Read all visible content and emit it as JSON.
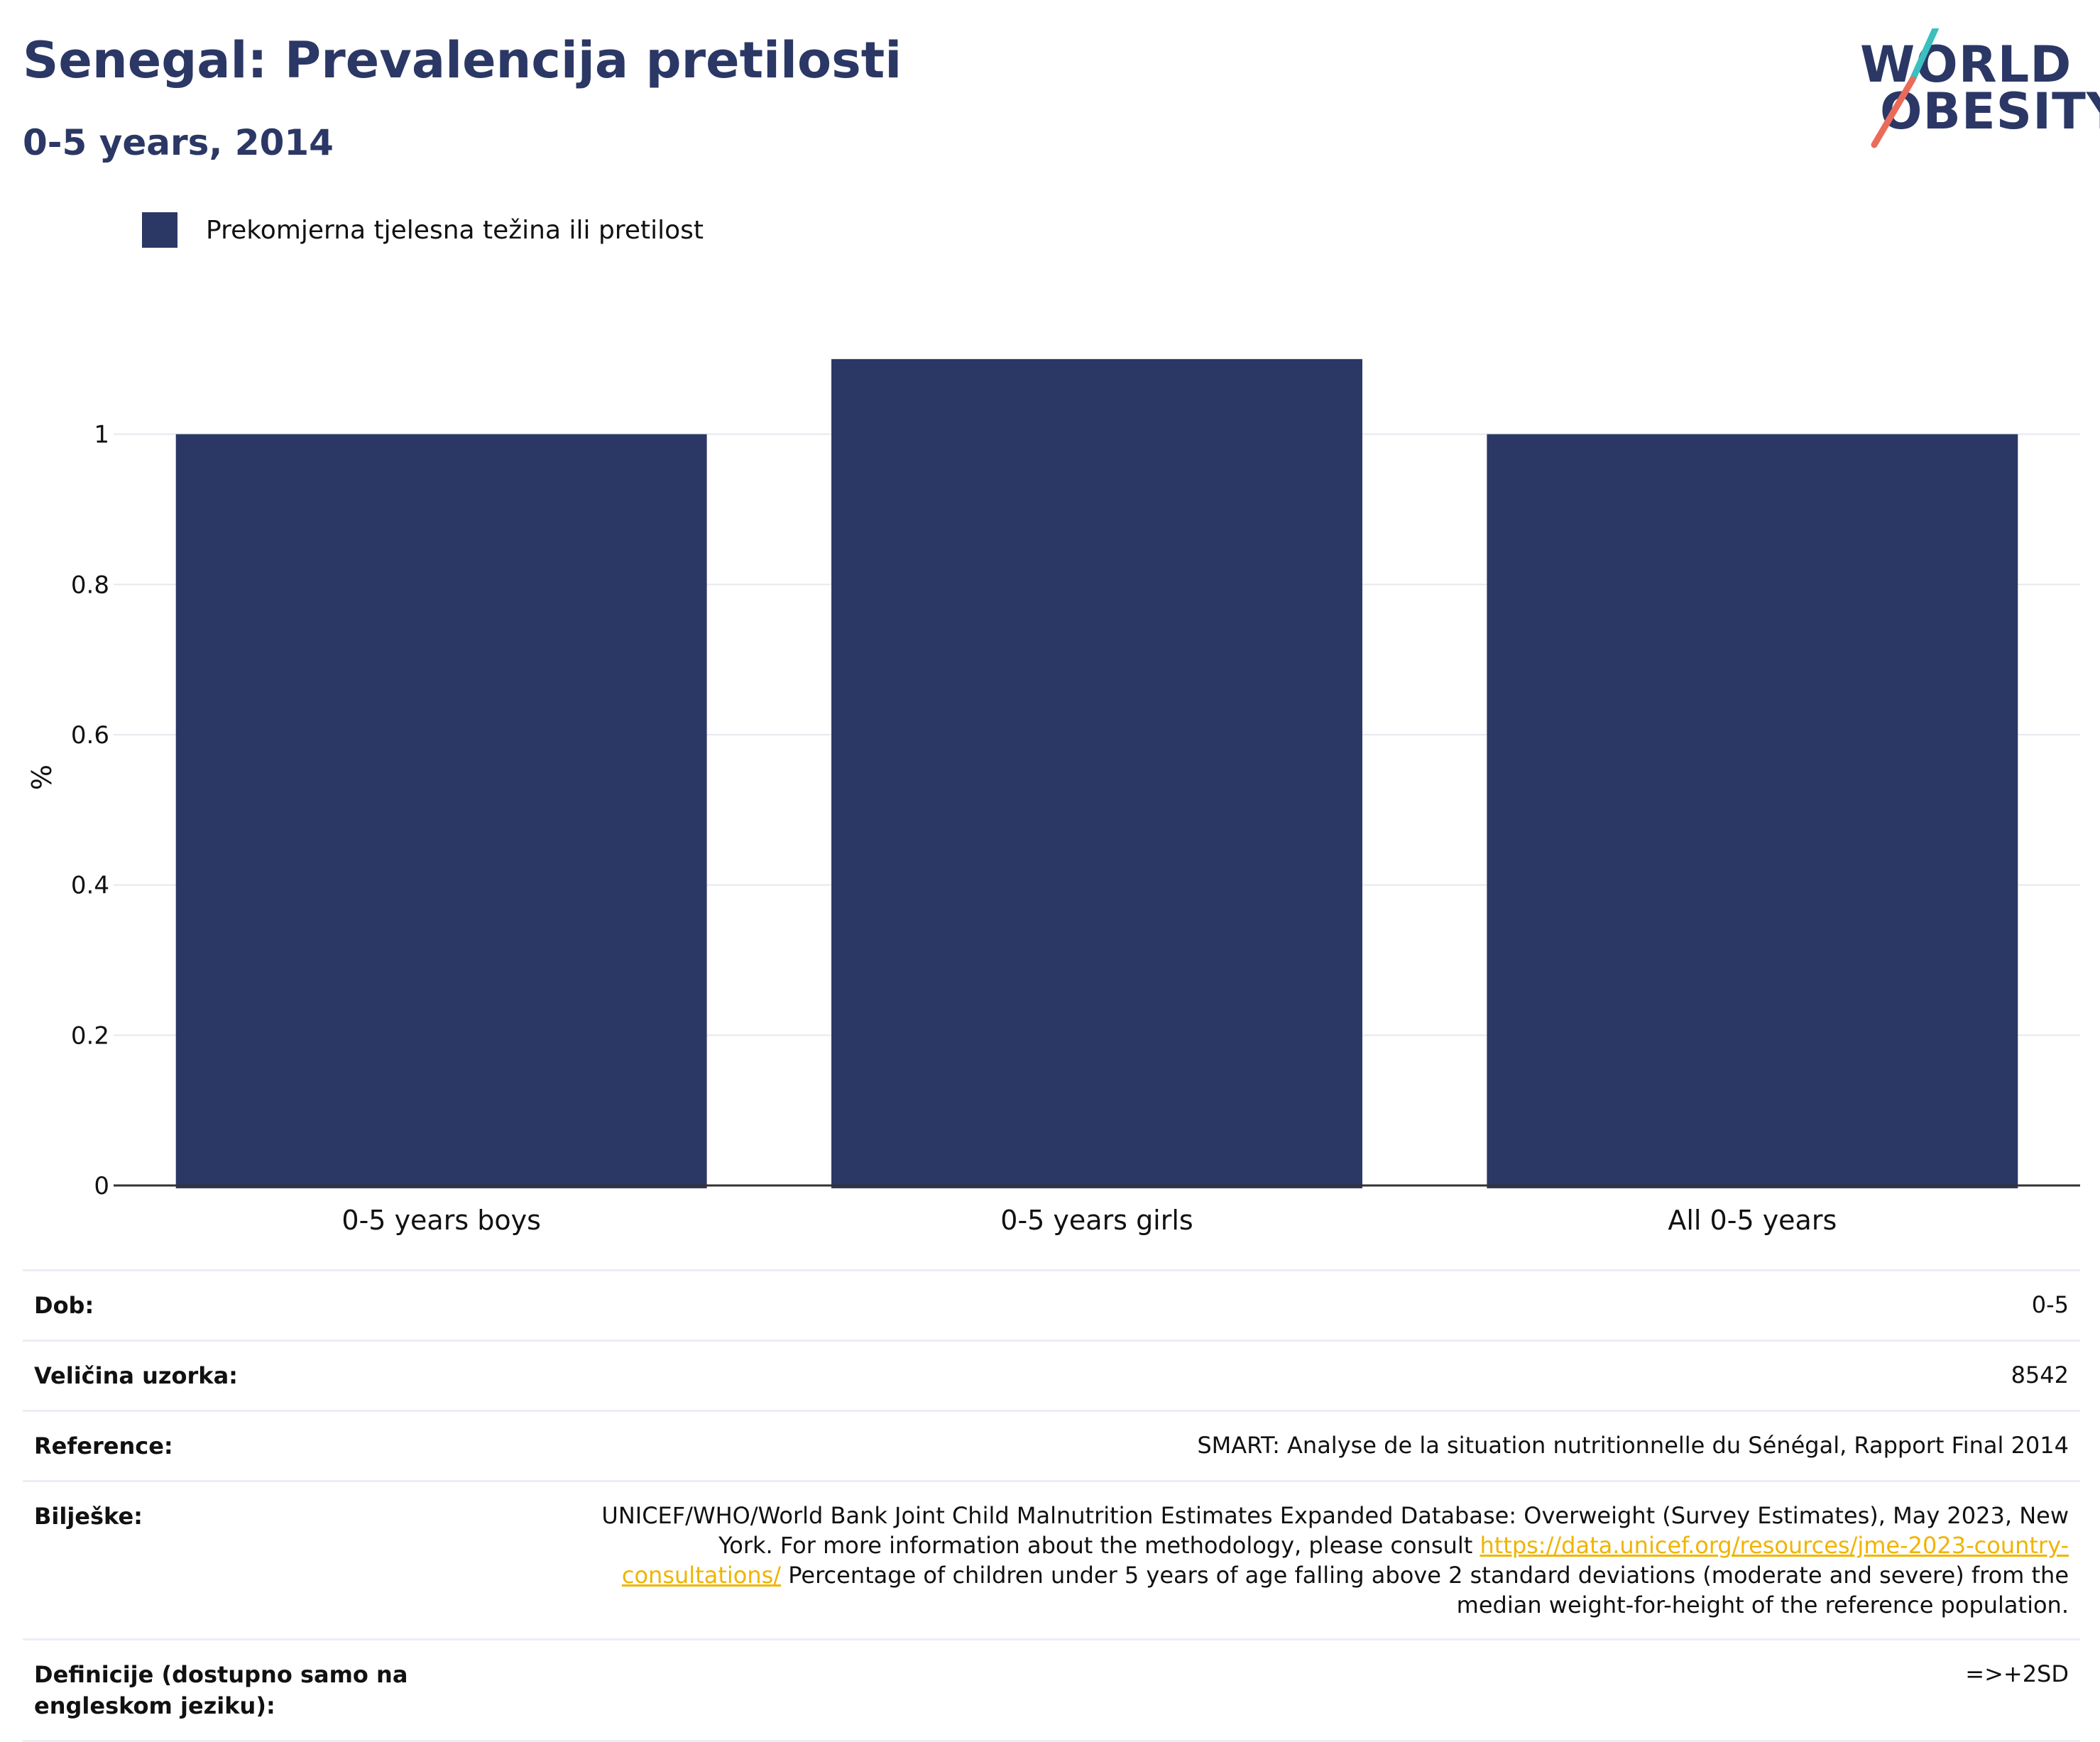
{
  "header": {
    "title": "Senegal: Prevalencija pretilosti",
    "subtitle": "0-5 years, 2014"
  },
  "logo": {
    "line1": "WORLD",
    "line2": "OBESITY",
    "accent_teal": "#3bbfbf",
    "accent_coral": "#ea6b5a"
  },
  "legend": {
    "label": "Prekomjerna tjelesna težina ili pretilost",
    "color": "#2b3765"
  },
  "chart_data": {
    "type": "bar",
    "categories": [
      "0-5 years boys",
      "0-5 years girls",
      "All 0-5 years"
    ],
    "series": [
      {
        "name": "Prekomjerna tjelesna težina ili pretilost",
        "values": [
          1.0,
          1.1,
          1.0
        ],
        "color": "#2b3765"
      }
    ],
    "xlabel": "",
    "ylabel": "%",
    "ylim": [
      0,
      1.2
    ],
    "yticks": [
      0,
      0.2,
      0.4,
      0.6,
      0.8,
      1
    ],
    "ytick_labels": [
      "0",
      "0.2",
      "0.4",
      "0.6",
      "0.8",
      "1"
    ],
    "grid": true,
    "legend_position": "top-left"
  },
  "info": {
    "rows": [
      {
        "key": "Dob:",
        "value": "0-5"
      },
      {
        "key": "Veličina uzorka:",
        "value": "8542"
      },
      {
        "key": "Reference:",
        "value": "SMART: Analyse de la situation nutritionnelle du Sénégal, Rapport Final 2014"
      },
      {
        "key": "Bilješke:",
        "value_part1": "UNICEF/WHO/World Bank Joint Child Malnutrition Estimates Expanded Database: Overweight (Survey Estimates), May 2023, New York. For more information about the methodology, please consult",
        "link": "https://data.unicef.org/resources/jme-2023-country-consultations/",
        "value_part2": "Percentage of children under 5 years of age falling above 2 standard deviations (moderate and severe) from the median weight-for-height of the reference population."
      },
      {
        "key": "Definicije (dostupno samo na engleskom jeziku):",
        "value": "=>+2SD"
      }
    ]
  }
}
